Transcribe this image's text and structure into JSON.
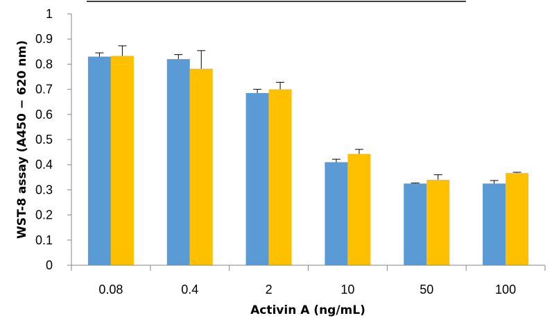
{
  "chart_data": {
    "type": "bar",
    "title": "",
    "xlabel": "Activin A (ng/mL)",
    "ylabel": "WST-8 assay (A450 − 620 nm)",
    "categories": [
      "0.08",
      "0.4",
      "2",
      "10",
      "50",
      "100"
    ],
    "series": [
      {
        "color": "#5B9BD5",
        "values": [
          0.83,
          0.82,
          0.685,
          0.41,
          0.325,
          0.325
        ],
        "errors": [
          0.015,
          0.018,
          0.015,
          0.012,
          0.002,
          0.012
        ]
      },
      {
        "color": "#FFC000",
        "values": [
          0.833,
          0.782,
          0.7,
          0.443,
          0.34,
          0.367
        ],
        "errors": [
          0.04,
          0.072,
          0.028,
          0.018,
          0.02,
          0.003
        ]
      }
    ],
    "ylim": [
      0,
      1
    ],
    "yticks": [
      "0",
      "0.1",
      "0.2",
      "0.3",
      "0.4",
      "0.5",
      "0.6",
      "0.7",
      "0.8",
      "0.9",
      "1"
    ],
    "grid": false,
    "legend": "none"
  }
}
